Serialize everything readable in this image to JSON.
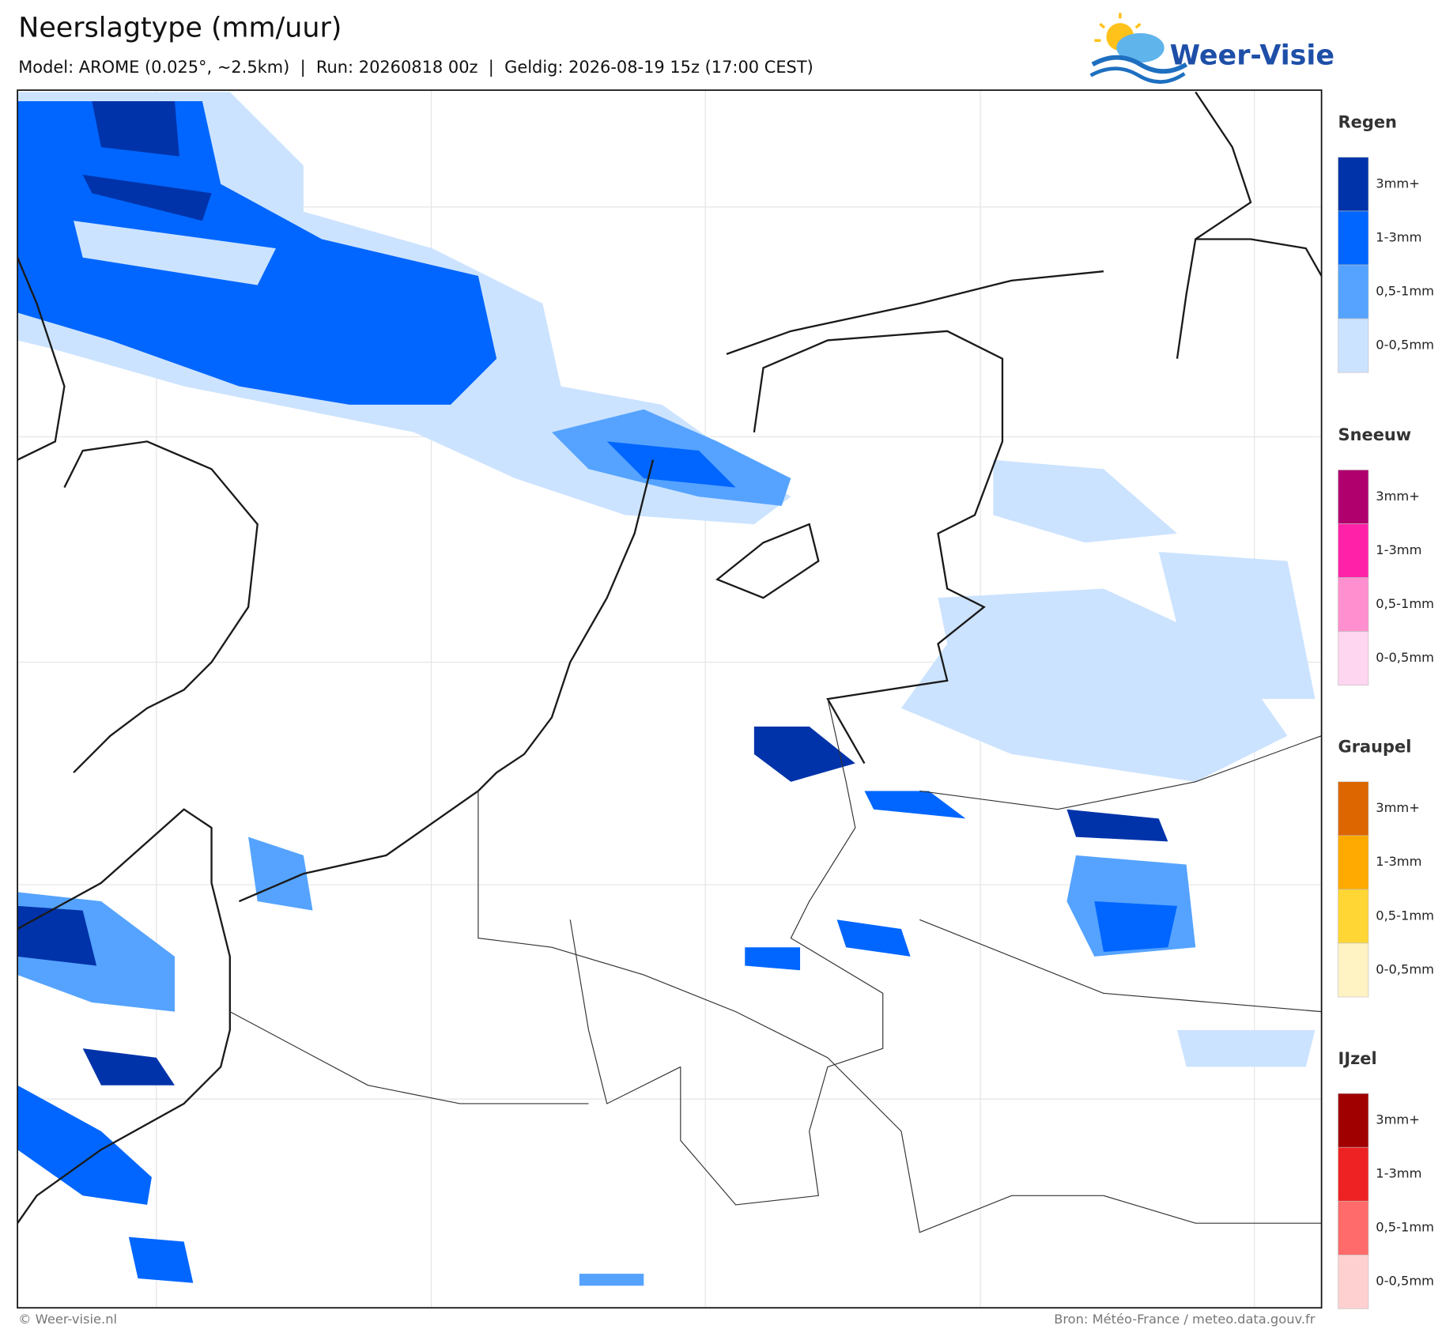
{
  "header": {
    "title": "Neerslagtype (mm/uur)",
    "subtitle": "Model: AROME (0.025°, ~2.5km)  |  Run: 20260818 00z  |  Geldig: 2026-08-19 15z (17:00 CEST)",
    "logo": "Weer-Visie"
  },
  "legend": [
    {
      "title": "Regen",
      "items": [
        {
          "label": "3mm+",
          "color": "#0033aa"
        },
        {
          "label": "1-3mm",
          "color": "#0066ff"
        },
        {
          "label": "0,5-1mm",
          "color": "#55a3ff"
        },
        {
          "label": "0-0,5mm",
          "color": "#cce3ff"
        }
      ]
    },
    {
      "title": "Sneeuw",
      "items": [
        {
          "label": "3mm+",
          "color": "#b0006e"
        },
        {
          "label": "1-3mm",
          "color": "#ff22a8"
        },
        {
          "label": "0,5-1mm",
          "color": "#ff8fcf"
        },
        {
          "label": "0-0,5mm",
          "color": "#ffd6ef"
        }
      ]
    },
    {
      "title": "Graupel",
      "items": [
        {
          "label": "3mm+",
          "color": "#dd6600"
        },
        {
          "label": "1-3mm",
          "color": "#ffaa00"
        },
        {
          "label": "0,5-1mm",
          "color": "#ffd633"
        },
        {
          "label": "0-0,5mm",
          "color": "#fff3c4"
        }
      ]
    },
    {
      "title": "IJzel",
      "items": [
        {
          "label": "3mm+",
          "color": "#a00000"
        },
        {
          "label": "1-3mm",
          "color": "#ee2222"
        },
        {
          "label": "0,5-1mm",
          "color": "#ff6b6b"
        },
        {
          "label": "0-0,5mm",
          "color": "#ffd0d0"
        }
      ]
    }
  ],
  "footer": {
    "left": "© Weer-visie.nl",
    "right": "Bron: Météo-France / meteo.data.gouv.fr"
  }
}
